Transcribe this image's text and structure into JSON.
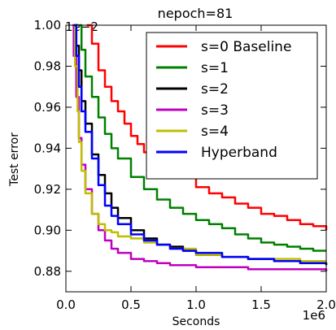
{
  "chart_data": {
    "type": "line",
    "title": "nepoch=81",
    "xlabel": "Seconds",
    "ylabel": "Test error",
    "x_offset_label": "1e6",
    "y_offset_label": "1e−2",
    "xlim": [
      0.0,
      2.0
    ],
    "ylim": [
      0.87,
      1.0
    ],
    "x_ticks": [
      0.0,
      0.5,
      1.0,
      1.5,
      2.0
    ],
    "x_tick_labels": [
      "0.0",
      "0.5",
      "1.0",
      "1.5",
      "2.0"
    ],
    "y_ticks": [
      0.88,
      0.9,
      0.92,
      0.94,
      0.96,
      0.98,
      1.0
    ],
    "y_tick_labels": [
      "0.88",
      "0.90",
      "0.92",
      "0.94",
      "0.96",
      "0.98",
      "1.00"
    ],
    "grid": false,
    "legend_position": "top-right",
    "series": [
      {
        "name": "s=0 Baseline",
        "color": "#ff0000",
        "x": [
          0.16,
          0.2,
          0.25,
          0.3,
          0.35,
          0.4,
          0.45,
          0.5,
          0.55,
          0.6,
          0.7,
          0.8,
          0.9,
          1.0,
          1.1,
          1.2,
          1.3,
          1.4,
          1.5,
          1.6,
          1.7,
          1.8,
          1.9,
          2.0
        ],
        "values": [
          1.0,
          0.991,
          0.978,
          0.97,
          0.963,
          0.958,
          0.952,
          0.946,
          0.942,
          0.938,
          0.932,
          0.929,
          0.926,
          0.921,
          0.918,
          0.916,
          0.913,
          0.911,
          0.908,
          0.907,
          0.905,
          0.903,
          0.902,
          0.9
        ]
      },
      {
        "name": "s=1",
        "color": "#008000",
        "x": [
          0.1,
          0.12,
          0.15,
          0.2,
          0.25,
          0.3,
          0.35,
          0.4,
          0.5,
          0.6,
          0.7,
          0.8,
          0.9,
          1.0,
          1.1,
          1.2,
          1.3,
          1.4,
          1.5,
          1.6,
          1.7,
          1.8,
          1.9,
          2.0
        ],
        "values": [
          1.0,
          0.988,
          0.975,
          0.965,
          0.955,
          0.947,
          0.94,
          0.935,
          0.926,
          0.92,
          0.915,
          0.911,
          0.908,
          0.905,
          0.903,
          0.901,
          0.898,
          0.896,
          0.894,
          0.893,
          0.892,
          0.891,
          0.89,
          0.89
        ]
      },
      {
        "name": "s=2",
        "color": "#000000",
        "x": [
          0.07,
          0.08,
          0.1,
          0.12,
          0.15,
          0.2,
          0.25,
          0.3,
          0.35,
          0.4,
          0.5,
          0.6,
          0.7,
          0.8,
          0.9,
          1.0,
          1.2,
          1.4,
          1.6,
          1.8,
          2.0
        ],
        "values": [
          1.0,
          0.99,
          0.978,
          0.963,
          0.952,
          0.937,
          0.927,
          0.918,
          0.911,
          0.906,
          0.9,
          0.896,
          0.893,
          0.892,
          0.89,
          0.888,
          0.887,
          0.886,
          0.885,
          0.884,
          0.883
        ]
      },
      {
        "name": "s=3",
        "color": "#bf00bf",
        "x": [
          0.05,
          0.06,
          0.08,
          0.1,
          0.12,
          0.15,
          0.2,
          0.25,
          0.3,
          0.35,
          0.4,
          0.5,
          0.6,
          0.7,
          0.8,
          0.9,
          1.0,
          1.2,
          1.4,
          1.6,
          1.8,
          2.0
        ],
        "values": [
          1.0,
          0.985,
          0.965,
          0.945,
          0.932,
          0.92,
          0.908,
          0.9,
          0.895,
          0.891,
          0.889,
          0.886,
          0.885,
          0.884,
          0.883,
          0.883,
          0.882,
          0.882,
          0.881,
          0.881,
          0.881,
          0.88
        ]
      },
      {
        "name": "s=4",
        "color": "#bfbf00",
        "x": [
          0.06,
          0.07,
          0.09,
          0.1,
          0.12,
          0.15,
          0.2,
          0.25,
          0.3,
          0.35,
          0.4,
          0.5,
          0.6,
          0.7,
          0.8,
          1.0,
          1.2,
          1.4,
          1.6,
          1.8,
          2.0
        ],
        "values": [
          1.0,
          0.98,
          0.958,
          0.943,
          0.929,
          0.918,
          0.908,
          0.903,
          0.9,
          0.899,
          0.897,
          0.896,
          0.894,
          0.893,
          0.891,
          0.888,
          0.887,
          0.886,
          0.886,
          0.885,
          0.885
        ]
      },
      {
        "name": "Hyperband",
        "color": "#0000ff",
        "x": [
          0.06,
          0.08,
          0.1,
          0.12,
          0.15,
          0.2,
          0.25,
          0.3,
          0.35,
          0.4,
          0.5,
          0.6,
          0.7,
          0.8,
          0.9,
          1.0,
          1.2,
          1.4,
          1.6,
          1.8,
          2.0
        ],
        "values": [
          1.0,
          0.985,
          0.97,
          0.958,
          0.948,
          0.935,
          0.922,
          0.912,
          0.907,
          0.903,
          0.898,
          0.895,
          0.893,
          0.891,
          0.89,
          0.889,
          0.887,
          0.886,
          0.885,
          0.884,
          0.884
        ]
      }
    ]
  }
}
